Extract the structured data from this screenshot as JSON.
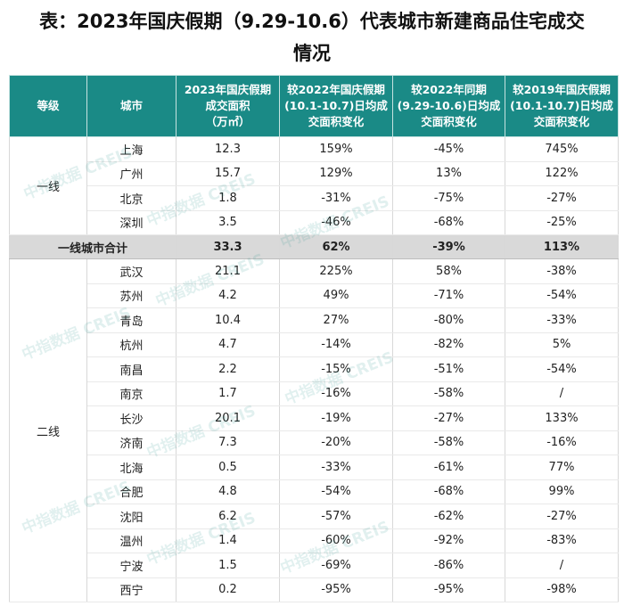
{
  "title_line1": "表：2023年国庆假期（9.29-10.6）代表城市新建商品住宅成交",
  "title_line2": "情况",
  "headers": {
    "grade": "等级",
    "city": "城市",
    "area": [
      "2023年国庆假期",
      "成交面积",
      "（万㎡）"
    ],
    "vs2022holiday": [
      "较2022年国庆假期",
      "(10.1-10.7)日均成",
      "交面积变化"
    ],
    "vs2022same": [
      "较2022年同期",
      "(9.29-10.6)日均成",
      "交面积变化"
    ],
    "vs2019holiday": [
      "较2019年国庆假期",
      "(10.1-10.7)日均成",
      "交面积变化"
    ]
  },
  "tier1": {
    "label": "一线",
    "rows": [
      {
        "city": "上海",
        "area": "12.3",
        "c1": "159%",
        "c2": "-45%",
        "c3": "745%"
      },
      {
        "city": "广州",
        "area": "15.7",
        "c1": "129%",
        "c2": "13%",
        "c3": "122%"
      },
      {
        "city": "北京",
        "area": "1.8",
        "c1": "-31%",
        "c2": "-75%",
        "c3": "-27%"
      },
      {
        "city": "深圳",
        "area": "3.5",
        "c1": "-46%",
        "c2": "-68%",
        "c3": "-25%"
      }
    ]
  },
  "tier1_total": {
    "label": "一线城市合计",
    "area": "33.3",
    "c1": "62%",
    "c2": "-39%",
    "c3": "113%"
  },
  "tier2": {
    "label": "二线",
    "rows": [
      {
        "city": "武汉",
        "area": "21.1",
        "c1": "225%",
        "c2": "58%",
        "c3": "-38%"
      },
      {
        "city": "苏州",
        "area": "4.2",
        "c1": "49%",
        "c2": "-71%",
        "c3": "-54%"
      },
      {
        "city": "青岛",
        "area": "10.4",
        "c1": "27%",
        "c2": "-80%",
        "c3": "-33%"
      },
      {
        "city": "杭州",
        "area": "4.7",
        "c1": "-14%",
        "c2": "-82%",
        "c3": "5%"
      },
      {
        "city": "南昌",
        "area": "2.2",
        "c1": "-15%",
        "c2": "-51%",
        "c3": "-54%"
      },
      {
        "city": "南京",
        "area": "1.7",
        "c1": "-16%",
        "c2": "-58%",
        "c3": "/"
      },
      {
        "city": "长沙",
        "area": "20.1",
        "c1": "-19%",
        "c2": "-27%",
        "c3": "133%"
      },
      {
        "city": "济南",
        "area": "7.3",
        "c1": "-20%",
        "c2": "-58%",
        "c3": "-16%"
      },
      {
        "city": "北海",
        "area": "0.5",
        "c1": "-33%",
        "c2": "-61%",
        "c3": "77%"
      },
      {
        "city": "合肥",
        "area": "4.8",
        "c1": "-54%",
        "c2": "-68%",
        "c3": "99%"
      },
      {
        "city": "沈阳",
        "area": "6.2",
        "c1": "-57%",
        "c2": "-62%",
        "c3": "-27%"
      },
      {
        "city": "温州",
        "area": "1.4",
        "c1": "-60%",
        "c2": "-92%",
        "c3": "-83%"
      },
      {
        "city": "宁波",
        "area": "1.5",
        "c1": "-69%",
        "c2": "-86%",
        "c3": "/"
      },
      {
        "city": "西宁",
        "area": "0.2",
        "c1": "-95%",
        "c2": "-95%",
        "c3": "-98%"
      }
    ]
  },
  "watermark": "中指数据 CREIS"
}
